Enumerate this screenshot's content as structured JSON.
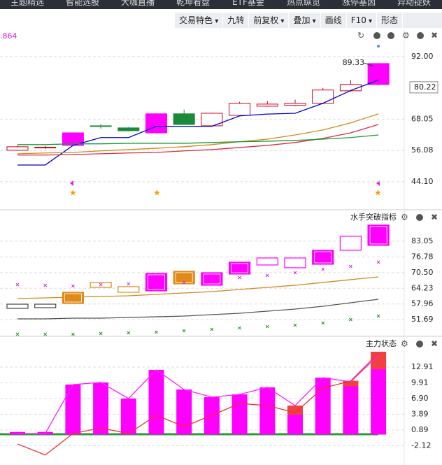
{
  "tabs": [
    "主题精选",
    "智能选股",
    "大咖直播",
    "乾坤看盘",
    "ETF基金",
    "热点纵览",
    "涨停基因",
    "异动捉妖"
  ],
  "toolbar": [
    "交易特色",
    "九转",
    "前复权",
    "叠加",
    "画线",
    "F10",
    "形态"
  ],
  "chart_data": [
    {
      "type": "candlestick",
      "corner_text": ".864",
      "ylim": [
        33.9,
        101.6
      ],
      "yticks": [
        {
          "value": 44.1,
          "label": "44.10"
        },
        56.08,
        68.05,
        {
          "value": 92,
          "label": "92.00"
        }
      ],
      "grid": true,
      "last_price": 80.22,
      "max_label": 89.33,
      "open": [
        56.14,
        57.1,
        58.0,
        65.5,
        64.7,
        62.8,
        70.1,
        65.5,
        69.5,
        73.0,
        73.3,
        74.1,
        78.9,
        81.3
      ],
      "high": [
        58.0,
        57.8,
        63.0,
        66.2,
        65.0,
        70.3,
        71.7,
        70.5,
        74.7,
        75.0,
        75.5,
        80.0,
        83.0,
        89.5
      ],
      "low": [
        55.9,
        56.7,
        57.8,
        64.4,
        63.4,
        62.6,
        65.8,
        65.3,
        69.3,
        72.8,
        73.0,
        73.8,
        78.5,
        81.0
      ],
      "close": [
        57.48,
        57.3,
        62.8,
        65.3,
        63.6,
        70.1,
        66.0,
        70.3,
        74.1,
        73.8,
        74.1,
        79.2,
        81.3,
        89.33
      ],
      "colors": [
        "#d0021b",
        "#d0021b",
        "#ff00ff",
        "#1a8a3a",
        "#1a8a3a",
        "#ff00ff",
        "#1a8a3a",
        "#d0021b",
        "#d0021b",
        "#d0021b",
        "#d0021b",
        "#d0021b",
        "#d0021b",
        "#ff00ff"
      ],
      "filled": [
        false,
        false,
        true,
        true,
        true,
        true,
        true,
        false,
        false,
        false,
        false,
        false,
        false,
        true
      ],
      "lines": [
        {
          "color": "#0000cc",
          "values": [
            50.5,
            50.5,
            58.0,
            61.0,
            61.0,
            65.3,
            65.3,
            65.3,
            69.3,
            70.0,
            70.3,
            74.1,
            79.0,
            83.0
          ]
        },
        {
          "color": "#d08a1a",
          "values": [
            54.8,
            55.1,
            55.3,
            55.9,
            56.4,
            56.9,
            57.5,
            58.3,
            59.4,
            60.4,
            62.0,
            63.9,
            66.6,
            70.1
          ]
        },
        {
          "color": "#d83040",
          "values": [
            54.3,
            54.3,
            54.5,
            54.8,
            55.1,
            55.3,
            55.9,
            56.4,
            57.2,
            58.0,
            59.1,
            60.7,
            62.8,
            66.0
          ]
        },
        {
          "color": "#1a9a3a",
          "values": [
            58.3,
            58.3,
            58.6,
            58.6,
            58.8,
            58.8,
            58.8,
            59.1,
            59.4,
            59.6,
            59.9,
            60.4,
            61.0,
            62.0
          ]
        }
      ]
    },
    {
      "type": "box",
      "title": "水手突破指标",
      "ylim": [
        45.3,
        94.2
      ],
      "yticks": [
        51.69,
        57.96,
        64.23,
        {
          "value": 70.5,
          "label": "70.50"
        },
        76.78,
        83.05
      ],
      "grid": true,
      "top": [
        57.87,
        57.87,
        62.63,
        66.55,
        64.87,
        70.18,
        71.02,
        70.46,
        74.66,
        76.34,
        76.34,
        79.41,
        85.01,
        89.48
      ],
      "bottom": [
        56.2,
        56.48,
        58.16,
        64.59,
        62.63,
        63.19,
        65.99,
        65.43,
        69.9,
        73.54,
        72.42,
        73.82,
        79.41,
        81.37
      ],
      "colors": [
        "#444444",
        "#444444",
        "#e08a1a",
        "#e08a1a",
        "#e08a1a",
        "#ff00ff",
        "#e08a1a",
        "#ff00ff",
        "#ff00ff",
        "#ff00ff",
        "#ff00ff",
        "#ff00ff",
        "#ff00ff",
        "#ff00ff"
      ],
      "filled": [
        false,
        false,
        true,
        false,
        false,
        true,
        true,
        true,
        true,
        false,
        false,
        true,
        false,
        true
      ],
      "lines": [
        {
          "color": "#d08a1a",
          "values": [
            60.11,
            60.39,
            60.67,
            60.95,
            61.23,
            61.79,
            62.35,
            62.91,
            63.75,
            64.59,
            65.43,
            66.55,
            67.67,
            68.78
          ]
        },
        {
          "color": "#555555",
          "values": [
            52.0,
            52.0,
            52.28,
            52.28,
            52.56,
            52.83,
            53.12,
            53.68,
            54.24,
            55.08,
            55.92,
            57.04,
            58.44,
            59.83
          ]
        }
      ],
      "markers": [
        {
          "color": "#e020e0",
          "values": [
            65.7,
            65.43,
            65.15,
            65.7,
            65.99,
            66.27,
            66.55,
            67.67,
            68.5,
            69.34,
            70.46,
            71.86,
            72.98,
            74.66
          ]
        },
        {
          "color": "#1a9a1a",
          "values": [
            45.85,
            45.85,
            45.85,
            46.13,
            46.41,
            46.69,
            47.25,
            47.81,
            48.37,
            48.92,
            49.48,
            50.32,
            51.72,
            53.12
          ]
        }
      ]
    },
    {
      "type": "bar",
      "title": "主力状态",
      "ylim": [
        -5.15,
        18.26
      ],
      "yticks": [
        -2.12,
        0.89,
        3.89,
        {
          "value": 6.9,
          "label": "6.90"
        },
        9.91,
        12.91
      ],
      "grid": true,
      "series": [
        {
          "color": "#ff00ff",
          "values": [
            0.5,
            0.5,
            9.57,
            9.97,
            6.89,
            12.37,
            8.63,
            7.16,
            7.69,
            9.03,
            3.81,
            10.9,
            9.23,
            12.51
          ]
        },
        {
          "color": "#f04040",
          "values": [
            0,
            0,
            0,
            0,
            0,
            0,
            0,
            0,
            0,
            0,
            1.74,
            0,
            1.07,
            3.34
          ]
        }
      ],
      "lines": [
        {
          "color": "#ff20ff",
          "values": [
            0.2,
            0.2,
            9.57,
            9.97,
            6.89,
            12.37,
            8.63,
            7.16,
            7.69,
            9.03,
            5.55,
            10.9,
            10.1,
            15.2
          ]
        },
        {
          "color": "#f03030",
          "values": [
            -1.8,
            -3.9,
            0.2,
            1.27,
            0.2,
            3.68,
            1.54,
            3.68,
            5.96,
            5.55,
            4.2,
            8.9,
            10.24,
            15.59
          ]
        }
      ]
    }
  ]
}
